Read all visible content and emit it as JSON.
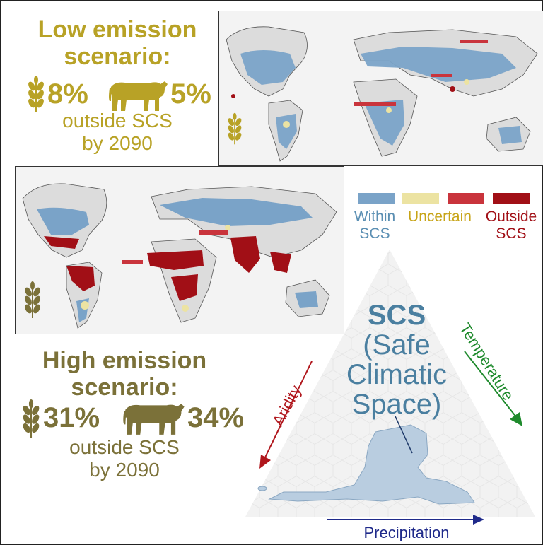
{
  "low_scenario": {
    "title_line1": "Low emission",
    "title_line2": "scenario:",
    "crop_pct": "8%",
    "livestock_pct": "5%",
    "subtitle_line1": "outside SCS",
    "subtitle_line2": "by 2090"
  },
  "high_scenario": {
    "title_line1": "High emission",
    "title_line2": "scenario:",
    "crop_pct": "31%",
    "livestock_pct": "34%",
    "subtitle_line1": "outside SCS",
    "subtitle_line2": "by 2090"
  },
  "legend": [
    {
      "line1": "Within",
      "line2": "SCS",
      "color": "#7aa3c8"
    },
    {
      "line1": "Uncertain",
      "line2": "",
      "color": "#ece3a2"
    },
    {
      "line1": "Outside",
      "line2": "",
      "color": "#c9343c"
    },
    {
      "line1": "",
      "line2": "SCS",
      "color": "#a10f16"
    }
  ],
  "triangle": {
    "title_bold": "SCS",
    "line2": "(Safe",
    "line3": "Climatic",
    "line4": "Space)",
    "left_axis": "Aridity",
    "right_axis": "Temperature",
    "bottom_axis": "Precipitation",
    "left_axis_color": "#b0161c",
    "right_axis_color": "#1e8a2c",
    "bottom_axis_color": "#1f2a8a"
  },
  "colors": {
    "low_accent": "#b8a226",
    "high_accent": "#7b7139",
    "scs_text": "#4a7fa0"
  },
  "icons": [
    "wheat-icon",
    "cow-icon"
  ]
}
